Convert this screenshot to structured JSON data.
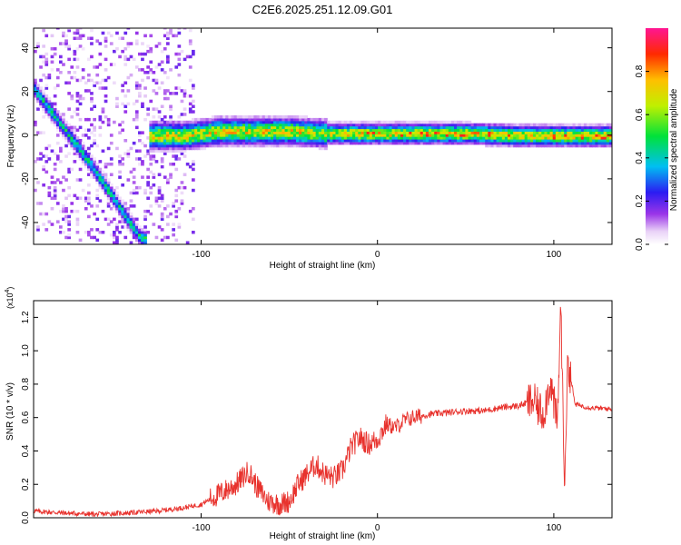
{
  "title": "C2E6.2025.251.12.09.G01",
  "colors": {
    "snr_line": "#e8322d",
    "axis": "#000000"
  },
  "colorbar": {
    "label": "Normalized spectral amplitude",
    "ticks": [
      {
        "value": 0.0,
        "label": "0.0"
      },
      {
        "value": 0.2,
        "label": "0.2"
      },
      {
        "value": 0.4,
        "label": "0.4"
      },
      {
        "value": 0.6,
        "label": "0.6"
      },
      {
        "value": 0.8,
        "label": "0.8"
      }
    ],
    "range": [
      0,
      1
    ]
  },
  "chart_data": [
    {
      "type": "heatmap",
      "xlabel": "Height of straight line (km)",
      "ylabel": "Frequency (Hz)",
      "xlim": [
        -195,
        133
      ],
      "ylim": [
        -50,
        49
      ],
      "xticks": [
        {
          "value": -100,
          "label": "-100"
        },
        {
          "value": 0,
          "label": "0"
        },
        {
          "value": 100,
          "label": "100"
        }
      ],
      "yticks": [
        {
          "value": -40,
          "label": "-40"
        },
        {
          "value": -20,
          "label": "-20"
        },
        {
          "value": 0,
          "label": "0"
        },
        {
          "value": 20,
          "label": "20"
        },
        {
          "value": 40,
          "label": "40"
        }
      ],
      "ridge_main": [
        {
          "x": -130,
          "f": -1
        },
        {
          "x": -110,
          "f": -1
        },
        {
          "x": -90,
          "f": 1
        },
        {
          "x": -70,
          "f": 1
        },
        {
          "x": -50,
          "f": 1
        },
        {
          "x": -30,
          "f": 0
        },
        {
          "x": -10,
          "f": 0
        },
        {
          "x": 10,
          "f": 0
        },
        {
          "x": 50,
          "f": 0
        },
        {
          "x": 80,
          "f": -1
        },
        {
          "x": 100,
          "f": -1
        },
        {
          "x": 133,
          "f": -1
        }
      ],
      "ridge_descending": [
        {
          "x": -195,
          "f": 20
        },
        {
          "x": -180,
          "f": 4
        },
        {
          "x": -165,
          "f": -12
        },
        {
          "x": -150,
          "f": -30
        },
        {
          "x": -135,
          "f": -48
        }
      ]
    },
    {
      "type": "line",
      "xlabel": "Height of straight line (km)",
      "ylabel": "SNR (10 * v/v)",
      "scale_note": "(x10",
      "scale_exp": "4",
      "scale_close": ")",
      "xlim": [
        -195,
        133
      ],
      "ylim": [
        0,
        1.3
      ],
      "xticks": [
        {
          "value": -100,
          "label": "-100"
        },
        {
          "value": 0,
          "label": "0"
        },
        {
          "value": 100,
          "label": "100"
        }
      ],
      "yticks": [
        {
          "value": 0.0,
          "label": "0.0"
        },
        {
          "value": 0.2,
          "label": "0.2"
        },
        {
          "value": 0.4,
          "label": "0.4"
        },
        {
          "value": 0.6,
          "label": "0.6"
        },
        {
          "value": 0.8,
          "label": "0.8"
        },
        {
          "value": 1.0,
          "label": "1.0"
        },
        {
          "value": 1.2,
          "label": "1.2"
        }
      ],
      "series": [
        {
          "values": [
            [
              -195,
              0.04
            ],
            [
              -180,
              0.03
            ],
            [
              -160,
              0.02
            ],
            [
              -140,
              0.03
            ],
            [
              -125,
              0.04
            ],
            [
              -110,
              0.06
            ],
            [
              -100,
              0.08
            ],
            [
              -90,
              0.14
            ],
            [
              -80,
              0.2
            ],
            [
              -73,
              0.28
            ],
            [
              -68,
              0.18
            ],
            [
              -62,
              0.1
            ],
            [
              -55,
              0.08
            ],
            [
              -50,
              0.1
            ],
            [
              -45,
              0.2
            ],
            [
              -40,
              0.26
            ],
            [
              -35,
              0.32
            ],
            [
              -30,
              0.26
            ],
            [
              -25,
              0.24
            ],
            [
              -20,
              0.28
            ],
            [
              -15,
              0.42
            ],
            [
              -10,
              0.48
            ],
            [
              -5,
              0.44
            ],
            [
              0,
              0.47
            ],
            [
              5,
              0.56
            ],
            [
              10,
              0.54
            ],
            [
              15,
              0.58
            ],
            [
              20,
              0.6
            ],
            [
              30,
              0.62
            ],
            [
              40,
              0.63
            ],
            [
              50,
              0.64
            ],
            [
              60,
              0.64
            ],
            [
              70,
              0.66
            ],
            [
              80,
              0.67
            ],
            [
              88,
              0.7
            ],
            [
              94,
              0.62
            ],
            [
              98,
              0.82
            ],
            [
              102,
              0.55
            ],
            [
              104,
              1.28
            ],
            [
              106,
              0.2
            ],
            [
              108,
              0.95
            ],
            [
              112,
              0.68
            ],
            [
              120,
              0.66
            ],
            [
              133,
              0.65
            ]
          ]
        }
      ]
    }
  ]
}
